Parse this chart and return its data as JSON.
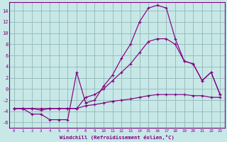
{
  "xlabel": "Windchill (Refroidissement éolien,°C)",
  "bg_color": "#c8e8e8",
  "line_color": "#800080",
  "grid_color": "#90b8b8",
  "xlim": [
    -0.5,
    23.5
  ],
  "ylim": [
    -7,
    15.5
  ],
  "yticks": [
    -6,
    -4,
    -2,
    0,
    2,
    4,
    6,
    8,
    10,
    12,
    14
  ],
  "xticks": [
    0,
    1,
    2,
    3,
    4,
    5,
    6,
    7,
    8,
    9,
    10,
    11,
    12,
    13,
    14,
    15,
    16,
    17,
    18,
    19,
    20,
    21,
    22,
    23
  ],
  "series": [
    {
      "x": [
        0,
        1,
        2,
        3,
        4,
        5,
        6,
        7,
        8,
        9,
        10,
        11,
        12,
        13,
        14,
        15,
        16,
        17,
        18,
        19,
        20,
        21,
        22,
        23
      ],
      "y": [
        -3.5,
        -3.5,
        -3.5,
        -3.5,
        -3.5,
        -3.5,
        -3.5,
        -3.5,
        -3.0,
        -2.8,
        -2.5,
        -2.2,
        -2.0,
        -1.8,
        -1.5,
        -1.2,
        -1.0,
        -1.0,
        -1.0,
        -1.0,
        -1.2,
        -1.2,
        -1.5,
        -1.5
      ]
    },
    {
      "x": [
        0,
        1,
        2,
        3,
        4,
        5,
        6,
        7,
        8,
        9,
        10,
        11,
        12,
        13,
        14,
        15,
        16,
        17,
        18,
        19,
        20,
        21,
        22,
        23
      ],
      "y": [
        -3.5,
        -3.5,
        -3.5,
        -3.8,
        -3.5,
        -3.5,
        -3.5,
        -3.5,
        -1.5,
        -1.0,
        0.0,
        1.5,
        3.0,
        4.5,
        6.5,
        8.5,
        9.0,
        9.0,
        8.0,
        5.0,
        4.5,
        1.5,
        3.0,
        -1.0
      ]
    },
    {
      "x": [
        0,
        1,
        2,
        3,
        4,
        5,
        6,
        7,
        8,
        9,
        10,
        11,
        12,
        13,
        14,
        15,
        16,
        17,
        18,
        19,
        20,
        21,
        22,
        23
      ],
      "y": [
        -3.5,
        -3.5,
        -4.5,
        -4.5,
        -5.5,
        -5.5,
        -5.5,
        3.0,
        -2.5,
        -2.0,
        0.5,
        2.5,
        5.5,
        8.0,
        12.0,
        14.5,
        15.0,
        14.5,
        9.0,
        5.0,
        4.5,
        1.5,
        3.0,
        -1.0
      ]
    }
  ]
}
